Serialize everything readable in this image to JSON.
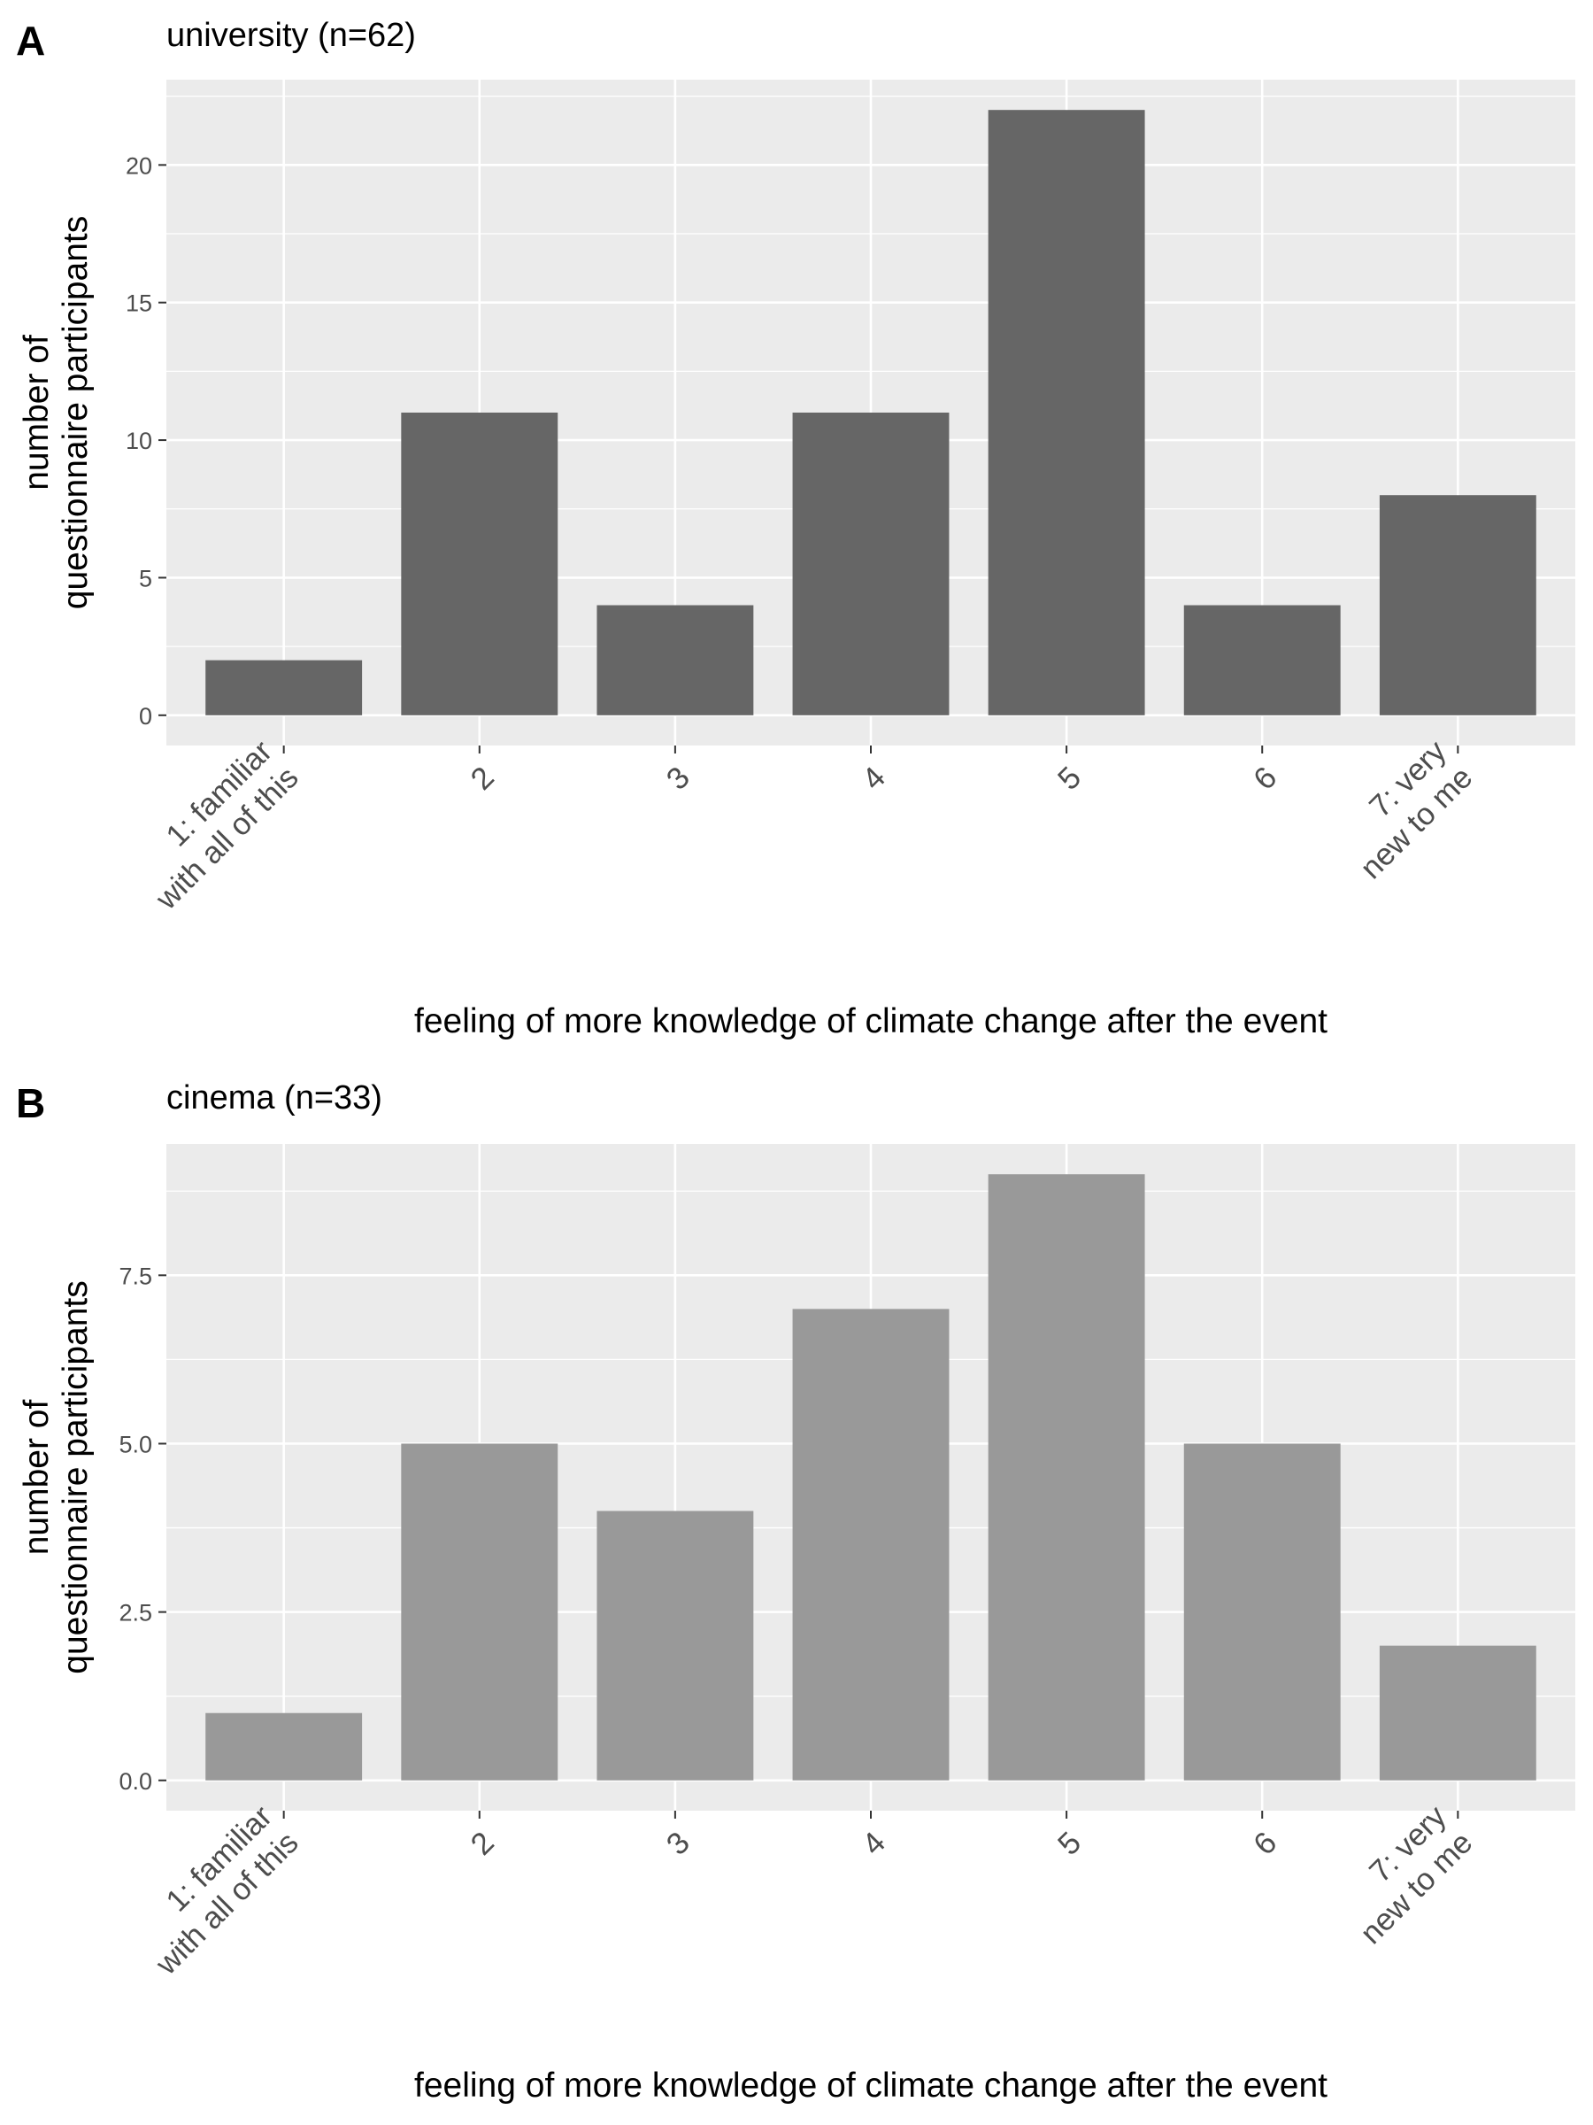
{
  "chart_data": [
    {
      "type": "bar",
      "panel_tag": "A",
      "title": "university (n=62)",
      "xlabel": "feeling of more knowledge of climate change after the event",
      "ylabel": "number of questionnaire participants",
      "ylabel_lines": [
        "number of",
        "questionnaire participants"
      ],
      "categories": [
        "1: familiar with all of this",
        "2",
        "3",
        "4",
        "5",
        "6",
        "7: very new to me"
      ],
      "category_lines": [
        [
          "1: familiar",
          "with all of this"
        ],
        [
          "2"
        ],
        [
          "3"
        ],
        [
          "4"
        ],
        [
          "5"
        ],
        [
          "6"
        ],
        [
          "7: very",
          "new to me"
        ]
      ],
      "values": [
        2,
        11,
        4,
        11,
        22,
        4,
        8
      ],
      "ylim": [
        -1.1,
        23.1
      ],
      "yticks": [
        0,
        5,
        10,
        15,
        20
      ],
      "ytick_labels": [
        "0",
        "5",
        "10",
        "15",
        "20"
      ],
      "bar_color": "#666666",
      "panel_background": "#ebebeb",
      "grid": true
    },
    {
      "type": "bar",
      "panel_tag": "B",
      "title": "cinema (n=33)",
      "xlabel": "feeling of more knowledge of climate change after the event",
      "ylabel": "number of questionnaire participants",
      "ylabel_lines": [
        "number of",
        "questionnaire participants"
      ],
      "categories": [
        "1: familiar with all of this",
        "2",
        "3",
        "4",
        "5",
        "6",
        "7: very new to me"
      ],
      "category_lines": [
        [
          "1: familiar",
          "with all of this"
        ],
        [
          "2"
        ],
        [
          "3"
        ],
        [
          "4"
        ],
        [
          "5"
        ],
        [
          "6"
        ],
        [
          "7: very",
          "new to me"
        ]
      ],
      "values": [
        1,
        5,
        4,
        7,
        9,
        5,
        2
      ],
      "ylim": [
        -0.45,
        9.45
      ],
      "yticks": [
        0,
        2.5,
        5,
        7.5
      ],
      "ytick_labels": [
        "0.0",
        "2.5",
        "5.0",
        "7.5"
      ],
      "bar_color": "#999999",
      "panel_background": "#ebebeb",
      "grid": true
    }
  ]
}
